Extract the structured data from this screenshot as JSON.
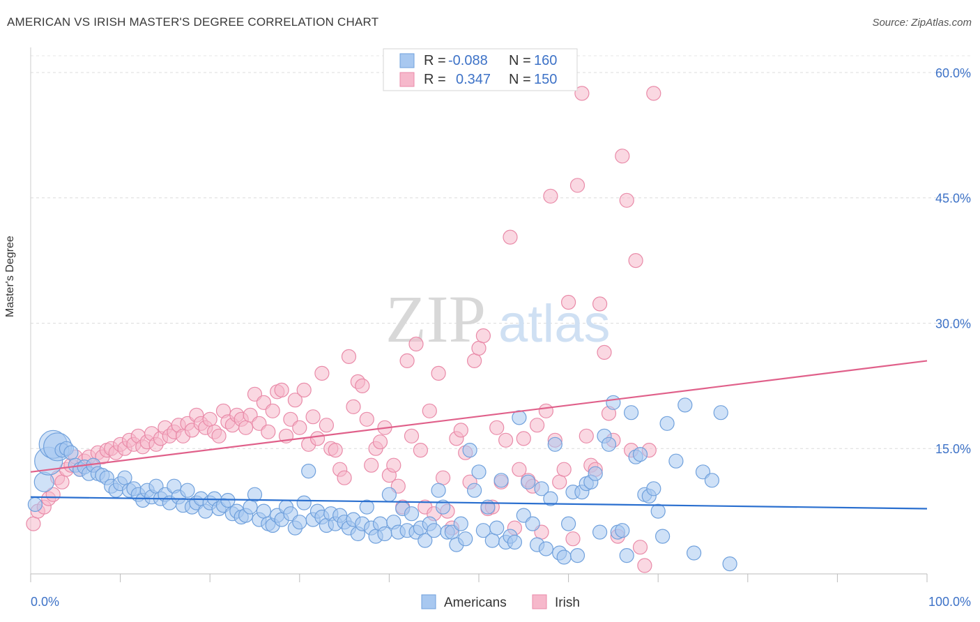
{
  "header": {
    "title": "AMERICAN VS IRISH MASTER'S DEGREE CORRELATION CHART",
    "source": "Source: ZipAtlas.com"
  },
  "watermark": {
    "zip": "ZIP",
    "atlas": "atlas"
  },
  "colors": {
    "blue_fill": "#a8c8f0",
    "blue_stroke": "#6fa0dc",
    "blue_line": "#2a6fcf",
    "pink_fill": "#f6b8cb",
    "pink_stroke": "#e98aa8",
    "pink_line": "#e0608a",
    "tick_label": "#3d72c7"
  },
  "legend": {
    "rows": [
      {
        "r_label": "R =",
        "r_value": "-0.088",
        "n_label": "N =",
        "n_value": "160"
      },
      {
        "r_label": "R =",
        "r_value": "0.347",
        "n_label": "N =",
        "n_value": "150"
      }
    ]
  },
  "bottom_legend": {
    "americans": "Americans",
    "irish": "Irish"
  },
  "chart_data": {
    "type": "scatter",
    "title": "AMERICAN VS IRISH MASTER'S DEGREE CORRELATION CHART",
    "xlabel": "",
    "ylabel": "Master's Degree",
    "xlim": [
      0,
      100
    ],
    "ylim": [
      0,
      62
    ],
    "x_tick_labels": [
      "0.0%",
      "100.0%"
    ],
    "y_ticks": [
      15,
      30,
      45,
      60
    ],
    "y_tick_labels": [
      "15.0%",
      "30.0%",
      "45.0%",
      "60.0%"
    ],
    "grid": true,
    "legend_position": "top-center",
    "series": [
      {
        "name": "Americans",
        "r": -0.088,
        "n": 160,
        "trend": {
          "x": [
            0,
            100
          ],
          "y": [
            9.2,
            7.8
          ]
        },
        "points": [
          [
            0.5,
            8.3
          ],
          [
            1.5,
            11
          ],
          [
            2,
            13.5
          ],
          [
            2.5,
            15.5
          ],
          [
            3,
            15.2
          ],
          [
            3.5,
            14.8
          ],
          [
            4,
            15
          ],
          [
            4.5,
            14.5
          ],
          [
            5,
            13
          ],
          [
            5.5,
            12.5
          ],
          [
            6,
            12.8
          ],
          [
            6.5,
            12
          ],
          [
            7,
            13
          ],
          [
            7.5,
            12
          ],
          [
            8,
            11.8
          ],
          [
            8.5,
            11.5
          ],
          [
            9,
            10.5
          ],
          [
            9.5,
            10
          ],
          [
            10,
            10.8
          ],
          [
            10.5,
            11.5
          ],
          [
            11,
            10
          ],
          [
            11.5,
            10.2
          ],
          [
            12,
            9.5
          ],
          [
            12.5,
            8.8
          ],
          [
            13,
            10
          ],
          [
            13.5,
            9.2
          ],
          [
            14,
            10.5
          ],
          [
            14.5,
            9
          ],
          [
            15,
            9.5
          ],
          [
            15.5,
            8.5
          ],
          [
            16,
            10.5
          ],
          [
            16.5,
            9.2
          ],
          [
            17,
            8.2
          ],
          [
            17.5,
            10
          ],
          [
            18,
            8
          ],
          [
            18.5,
            8.5
          ],
          [
            19,
            9
          ],
          [
            19.5,
            7.5
          ],
          [
            20,
            8.5
          ],
          [
            20.5,
            9
          ],
          [
            21,
            7.8
          ],
          [
            21.5,
            8.2
          ],
          [
            22,
            8.8
          ],
          [
            22.5,
            7.2
          ],
          [
            23,
            7.5
          ],
          [
            23.5,
            6.8
          ],
          [
            24,
            7
          ],
          [
            24.5,
            8
          ],
          [
            25,
            9.5
          ],
          [
            25.5,
            6.5
          ],
          [
            26,
            7.5
          ],
          [
            26.5,
            6
          ],
          [
            27,
            5.8
          ],
          [
            27.5,
            7
          ],
          [
            28,
            6.5
          ],
          [
            28.5,
            8
          ],
          [
            29,
            7.2
          ],
          [
            29.5,
            5.5
          ],
          [
            30,
            6.2
          ],
          [
            30.5,
            8.5
          ],
          [
            31,
            12.3
          ],
          [
            31.5,
            6.5
          ],
          [
            32,
            7.5
          ],
          [
            32.5,
            6.8
          ],
          [
            33,
            5.8
          ],
          [
            33.5,
            7.2
          ],
          [
            34,
            6
          ],
          [
            34.5,
            7
          ],
          [
            35,
            6.2
          ],
          [
            35.5,
            5.5
          ],
          [
            36,
            6.5
          ],
          [
            36.5,
            4.8
          ],
          [
            37,
            6
          ],
          [
            37.5,
            8
          ],
          [
            38,
            5.5
          ],
          [
            38.5,
            4.5
          ],
          [
            39,
            6
          ],
          [
            39.5,
            4.8
          ],
          [
            40,
            9.5
          ],
          [
            40.5,
            6.2
          ],
          [
            41,
            5
          ],
          [
            41.5,
            7.8
          ],
          [
            42,
            5.2
          ],
          [
            42.5,
            7.2
          ],
          [
            43,
            5
          ],
          [
            43.5,
            5.5
          ],
          [
            44,
            4
          ],
          [
            44.5,
            6
          ],
          [
            45,
            5.2
          ],
          [
            45.5,
            10
          ],
          [
            46,
            8
          ],
          [
            46.5,
            5
          ],
          [
            47,
            5
          ],
          [
            47.5,
            3.5
          ],
          [
            48,
            6
          ],
          [
            48.5,
            4.2
          ],
          [
            49,
            14.8
          ],
          [
            49.5,
            10
          ],
          [
            50,
            12.2
          ],
          [
            50.5,
            5.2
          ],
          [
            51,
            8
          ],
          [
            51.5,
            4
          ],
          [
            52,
            5.5
          ],
          [
            52.5,
            11.2
          ],
          [
            53,
            3.8
          ],
          [
            53.5,
            4.5
          ],
          [
            54,
            3.8
          ],
          [
            54.5,
            18.7
          ],
          [
            55,
            7
          ],
          [
            55.5,
            11
          ],
          [
            56,
            6
          ],
          [
            56.5,
            3.5
          ],
          [
            57,
            10.2
          ],
          [
            57.5,
            3
          ],
          [
            58,
            9
          ],
          [
            58.5,
            15.5
          ],
          [
            59,
            2.5
          ],
          [
            59.5,
            2
          ],
          [
            60,
            6
          ],
          [
            60.5,
            9.8
          ],
          [
            61,
            2.2
          ],
          [
            61.5,
            9.8
          ],
          [
            62,
            10.8
          ],
          [
            62.5,
            11
          ],
          [
            63,
            12
          ],
          [
            63.5,
            5
          ],
          [
            64,
            16.5
          ],
          [
            64.5,
            15.5
          ],
          [
            65,
            20.5
          ],
          [
            65.5,
            5
          ],
          [
            66,
            5.2
          ],
          [
            66.5,
            2.2
          ],
          [
            67,
            19.3
          ],
          [
            67.5,
            14
          ],
          [
            68,
            14.3
          ],
          [
            68.5,
            9.5
          ],
          [
            69,
            9.3
          ],
          [
            69.5,
            10.2
          ],
          [
            70,
            7.5
          ],
          [
            70.5,
            4.5
          ],
          [
            71,
            18
          ],
          [
            72,
            13.5
          ],
          [
            73,
            20.2
          ],
          [
            74,
            2.5
          ],
          [
            75,
            12.2
          ],
          [
            76,
            11.2
          ],
          [
            77,
            19.3
          ],
          [
            78,
            1.2
          ]
        ]
      },
      {
        "name": "Irish",
        "r": 0.347,
        "n": 150,
        "trend": {
          "x": [
            0,
            100
          ],
          "y": [
            12.2,
            25.5
          ]
        },
        "points": [
          [
            0.3,
            6
          ],
          [
            0.8,
            7.5
          ],
          [
            1.5,
            8
          ],
          [
            2,
            9
          ],
          [
            2.5,
            9.5
          ],
          [
            3,
            11.5
          ],
          [
            3.5,
            11
          ],
          [
            4,
            12.5
          ],
          [
            4.5,
            13
          ],
          [
            5,
            14
          ],
          [
            5.5,
            12.5
          ],
          [
            6,
            13.5
          ],
          [
            6.5,
            14
          ],
          [
            7,
            13
          ],
          [
            7.5,
            14.5
          ],
          [
            8,
            14
          ],
          [
            8.5,
            14.8
          ],
          [
            9,
            15
          ],
          [
            9.5,
            14.5
          ],
          [
            10,
            15.5
          ],
          [
            10.5,
            15
          ],
          [
            11,
            16
          ],
          [
            11.5,
            15.5
          ],
          [
            12,
            16.5
          ],
          [
            12.5,
            15.2
          ],
          [
            13,
            15.8
          ],
          [
            13.5,
            16.8
          ],
          [
            14,
            15.5
          ],
          [
            14.5,
            16.2
          ],
          [
            15,
            17.5
          ],
          [
            15.5,
            16.5
          ],
          [
            16,
            17
          ],
          [
            16.5,
            17.8
          ],
          [
            17,
            16.5
          ],
          [
            17.5,
            18
          ],
          [
            18,
            17.2
          ],
          [
            18.5,
            19
          ],
          [
            19,
            18
          ],
          [
            19.5,
            17.5
          ],
          [
            20,
            18.5
          ],
          [
            20.5,
            17
          ],
          [
            21,
            16.5
          ],
          [
            21.5,
            19.5
          ],
          [
            22,
            18.2
          ],
          [
            22.5,
            17.8
          ],
          [
            23,
            19
          ],
          [
            23.5,
            18.5
          ],
          [
            24,
            17.5
          ],
          [
            24.5,
            19
          ],
          [
            25,
            21.5
          ],
          [
            25.5,
            18
          ],
          [
            26,
            20.5
          ],
          [
            26.5,
            17
          ],
          [
            27,
            19.5
          ],
          [
            27.5,
            21.8
          ],
          [
            28,
            22
          ],
          [
            28.5,
            16.5
          ],
          [
            29,
            18.5
          ],
          [
            29.5,
            20.8
          ],
          [
            30,
            17.5
          ],
          [
            30.5,
            22
          ],
          [
            31,
            15.5
          ],
          [
            31.5,
            18.8
          ],
          [
            32,
            16.2
          ],
          [
            32.5,
            24
          ],
          [
            33,
            17.8
          ],
          [
            33.5,
            15
          ],
          [
            34,
            14.8
          ],
          [
            34.5,
            12.5
          ],
          [
            35,
            11.5
          ],
          [
            35.5,
            26
          ],
          [
            36,
            20
          ],
          [
            36.5,
            23
          ],
          [
            37,
            22.5
          ],
          [
            37.5,
            18.5
          ],
          [
            38,
            13
          ],
          [
            38.5,
            15
          ],
          [
            39,
            15.8
          ],
          [
            39.5,
            17.5
          ],
          [
            40,
            11.8
          ],
          [
            40.5,
            13
          ],
          [
            41,
            10.5
          ],
          [
            41.5,
            8
          ],
          [
            42,
            25.5
          ],
          [
            42.5,
            16.5
          ],
          [
            43,
            27.5
          ],
          [
            43.5,
            14.8
          ],
          [
            44,
            8
          ],
          [
            44.5,
            19.5
          ],
          [
            45,
            7.2
          ],
          [
            45.5,
            24
          ],
          [
            46,
            11.5
          ],
          [
            46.5,
            7.5
          ],
          [
            47,
            5.5
          ],
          [
            47.5,
            16.2
          ],
          [
            48,
            17.2
          ],
          [
            48.5,
            14.5
          ],
          [
            49,
            11
          ],
          [
            49.5,
            25.5
          ],
          [
            50,
            27
          ],
          [
            50.5,
            28.5
          ],
          [
            51,
            7.8
          ],
          [
            51.5,
            8
          ],
          [
            52,
            17.5
          ],
          [
            52.5,
            11
          ],
          [
            53,
            16
          ],
          [
            53.5,
            40.3
          ],
          [
            54,
            5.5
          ],
          [
            54.5,
            12.5
          ],
          [
            55,
            16.2
          ],
          [
            55.5,
            11.2
          ],
          [
            56,
            10.5
          ],
          [
            56.5,
            17.8
          ],
          [
            57,
            5
          ],
          [
            57.5,
            19.5
          ],
          [
            58,
            45.2
          ],
          [
            58.5,
            16
          ],
          [
            59,
            11
          ],
          [
            59.5,
            12.5
          ],
          [
            60,
            32.5
          ],
          [
            60.5,
            4.2
          ],
          [
            61,
            46.5
          ],
          [
            61.5,
            57.5
          ],
          [
            62,
            16.5
          ],
          [
            62.5,
            13
          ],
          [
            63,
            12.5
          ],
          [
            63.5,
            32.3
          ],
          [
            64,
            26.5
          ],
          [
            64.5,
            19.2
          ],
          [
            65,
            16
          ],
          [
            65.5,
            4.5
          ],
          [
            66,
            50
          ],
          [
            66.5,
            44.7
          ],
          [
            67,
            14.8
          ],
          [
            67.5,
            37.5
          ],
          [
            68,
            3.2
          ],
          [
            68.5,
            1
          ],
          [
            69,
            14.8
          ],
          [
            69.5,
            57.5
          ]
        ]
      }
    ]
  }
}
